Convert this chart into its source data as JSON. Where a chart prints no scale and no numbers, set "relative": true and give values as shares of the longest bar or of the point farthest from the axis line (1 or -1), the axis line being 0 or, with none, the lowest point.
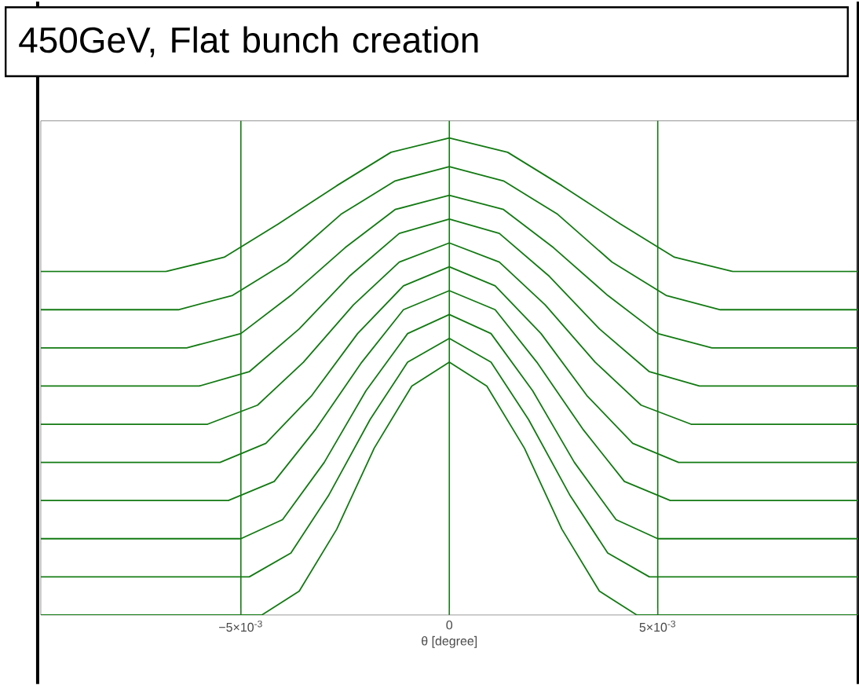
{
  "chart_data": {
    "type": "line",
    "title": "450GeV, Flat bunch creation",
    "xlabel": "θ [degree]",
    "relative": true,
    "xlim": [
      -0.0098,
      0.0098
    ],
    "xticks": [
      {
        "value": -0.005,
        "label": "−5×10$^{-3}$"
      },
      0,
      {
        "value": 0.005,
        "label": "5×10$^{-3}$"
      }
    ],
    "grid": "x",
    "marker": "none",
    "line_style": "solid",
    "series": [
      {
        "color": "#127a12",
        "x": [
          -0.0098,
          -0.0045,
          -0.0036,
          -0.0027,
          -0.0018,
          -0.0009,
          0,
          0.0009,
          0.0018,
          0.0027,
          0.0036,
          0.0045,
          0.0098
        ],
        "values": [
          0,
          0,
          0.05,
          0.18,
          0.35,
          0.48,
          0.53,
          0.48,
          0.35,
          0.18,
          0.05,
          0,
          0
        ]
      },
      {
        "color": "#127a12",
        "x": [
          -0.0098,
          -0.0048,
          -0.0038,
          -0.0029,
          -0.0019,
          -0.001,
          0,
          0.001,
          0.0019,
          0.0029,
          0.0038,
          0.0048,
          0.0098
        ],
        "values": [
          0.08,
          0.08,
          0.13,
          0.25,
          0.41,
          0.53,
          0.58,
          0.53,
          0.41,
          0.25,
          0.13,
          0.08,
          0.08
        ]
      },
      {
        "color": "#127a12",
        "x": [
          -0.0098,
          -0.005,
          -0.004,
          -0.003,
          -0.002,
          -0.001,
          0,
          0.001,
          0.002,
          0.003,
          0.004,
          0.005,
          0.0098
        ],
        "values": [
          0.16,
          0.16,
          0.2,
          0.32,
          0.47,
          0.59,
          0.63,
          0.59,
          0.47,
          0.32,
          0.2,
          0.16,
          0.16
        ]
      },
      {
        "color": "#127a12",
        "x": [
          -0.0098,
          -0.0053,
          -0.0042,
          -0.0032,
          -0.0021,
          -0.0011,
          0,
          0.0011,
          0.0021,
          0.0032,
          0.0042,
          0.0053,
          0.0098
        ],
        "values": [
          0.24,
          0.24,
          0.28,
          0.39,
          0.53,
          0.64,
          0.68,
          0.64,
          0.53,
          0.39,
          0.28,
          0.24,
          0.24
        ]
      },
      {
        "color": "#127a12",
        "x": [
          -0.0098,
          -0.0055,
          -0.0044,
          -0.0033,
          -0.0022,
          -0.0011,
          0,
          0.0011,
          0.0022,
          0.0033,
          0.0044,
          0.0055,
          0.0098
        ],
        "values": [
          0.32,
          0.32,
          0.36,
          0.46,
          0.59,
          0.69,
          0.73,
          0.69,
          0.59,
          0.46,
          0.36,
          0.32,
          0.32
        ]
      },
      {
        "color": "#127a12",
        "x": [
          -0.0098,
          -0.0058,
          -0.0046,
          -0.0035,
          -0.0023,
          -0.0012,
          0,
          0.0012,
          0.0023,
          0.0035,
          0.0046,
          0.0058,
          0.0098
        ],
        "values": [
          0.4,
          0.4,
          0.44,
          0.53,
          0.65,
          0.74,
          0.78,
          0.74,
          0.65,
          0.53,
          0.44,
          0.4,
          0.4
        ]
      },
      {
        "color": "#127a12",
        "x": [
          -0.0098,
          -0.006,
          -0.0048,
          -0.0036,
          -0.0024,
          -0.0012,
          0,
          0.0012,
          0.0024,
          0.0036,
          0.0048,
          0.006,
          0.0098
        ],
        "values": [
          0.48,
          0.48,
          0.51,
          0.6,
          0.71,
          0.8,
          0.83,
          0.8,
          0.71,
          0.6,
          0.51,
          0.48,
          0.48
        ]
      },
      {
        "color": "#127a12",
        "x": [
          -0.0098,
          -0.0063,
          -0.005,
          -0.0038,
          -0.0025,
          -0.0013,
          0,
          0.0013,
          0.0025,
          0.0038,
          0.005,
          0.0063,
          0.0098
        ],
        "values": [
          0.56,
          0.56,
          0.59,
          0.67,
          0.77,
          0.85,
          0.88,
          0.85,
          0.77,
          0.67,
          0.59,
          0.56,
          0.56
        ]
      },
      {
        "color": "#127a12",
        "x": [
          -0.0098,
          -0.0065,
          -0.0052,
          -0.0039,
          -0.0026,
          -0.0013,
          0,
          0.0013,
          0.0026,
          0.0039,
          0.0052,
          0.0065,
          0.0098
        ],
        "values": [
          0.64,
          0.64,
          0.67,
          0.74,
          0.84,
          0.91,
          0.94,
          0.91,
          0.84,
          0.74,
          0.67,
          0.64,
          0.64
        ]
      },
      {
        "color": "#127a12",
        "x": [
          -0.0098,
          -0.0068,
          -0.0054,
          -0.0041,
          -0.0027,
          -0.0014,
          0,
          0.0014,
          0.0027,
          0.0041,
          0.0054,
          0.0068,
          0.0098
        ],
        "values": [
          0.72,
          0.72,
          0.75,
          0.82,
          0.9,
          0.97,
          1.0,
          0.97,
          0.9,
          0.82,
          0.75,
          0.72,
          0.72
        ]
      }
    ]
  }
}
